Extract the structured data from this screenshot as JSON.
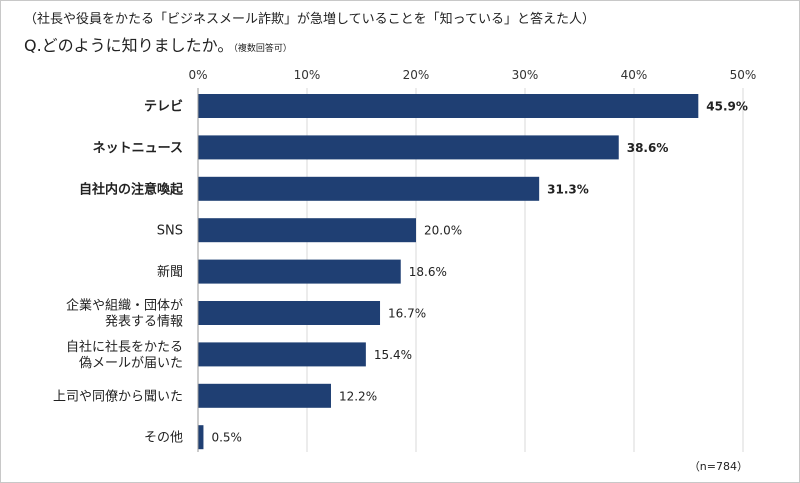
{
  "subtitle": "（社長や役員をかたる「ビジネスメール詐欺」が急増していることを「知っている」と答えた人）",
  "question": "Q.どのように知りましたか。",
  "question_note": "（複数回答可）",
  "sample_note": "（n=784）",
  "chart_data": {
    "type": "bar",
    "orientation": "horizontal",
    "categories": [
      "テレビ",
      "ネットニュース",
      "自社内の注意喚起",
      "SNS",
      "新聞",
      "企業や組織・団体が\n発表する情報",
      "自社に社長をかたる\n偽メールが届いた",
      "上司や同僚から聞いた",
      "その他"
    ],
    "values": [
      45.9,
      38.6,
      31.3,
      20.0,
      18.6,
      16.7,
      15.4,
      12.2,
      0.5
    ],
    "value_labels": [
      "45.9%",
      "38.6%",
      "31.3%",
      "20.0%",
      "18.6%",
      "16.7%",
      "15.4%",
      "12.2%",
      "0.5%"
    ],
    "bold_top": 3,
    "xlim": [
      0,
      50
    ],
    "xticks": [
      "0%",
      "10%",
      "20%",
      "30%",
      "40%",
      "50%"
    ],
    "grid": true,
    "bar_color": "#1f3f73",
    "grid_color": "#d9d9d9"
  }
}
